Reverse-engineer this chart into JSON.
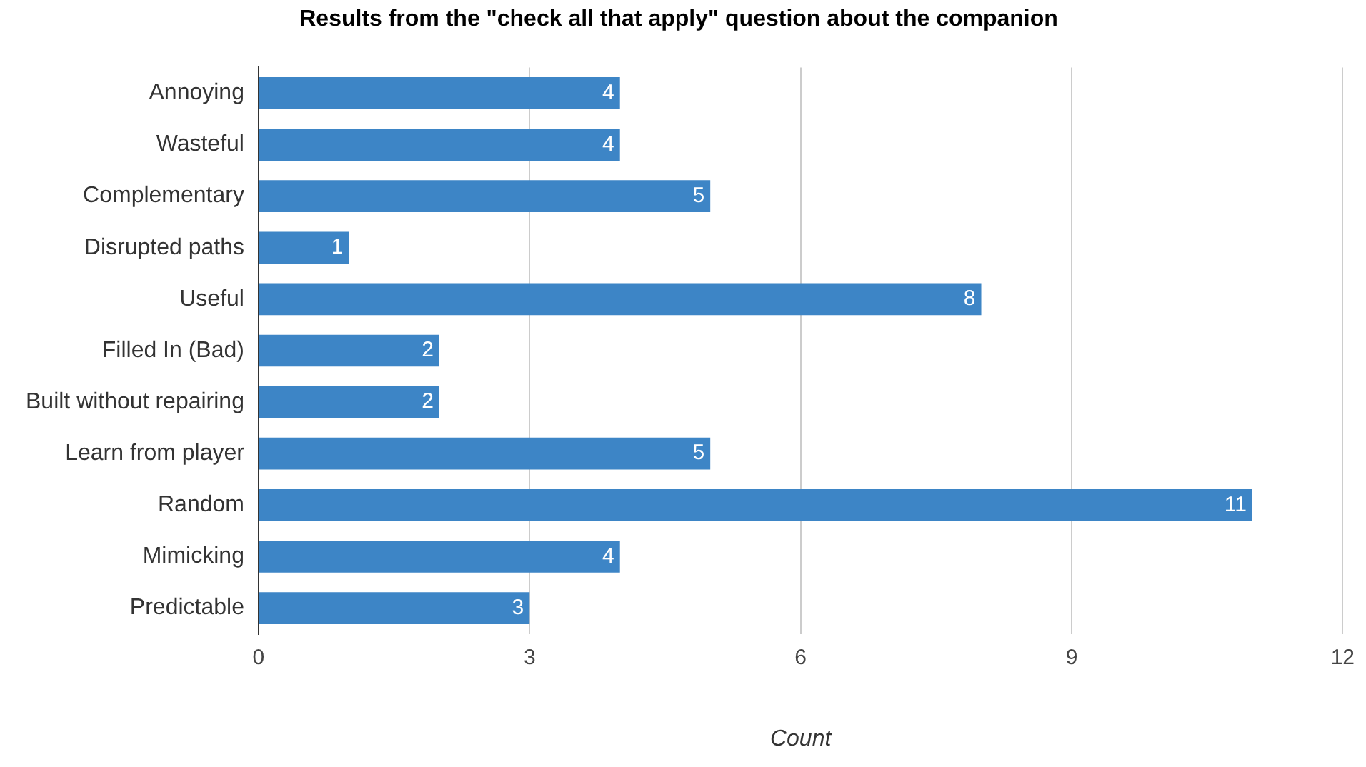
{
  "chart_data": {
    "type": "bar",
    "orientation": "horizontal",
    "title": "Results from the \"check all that apply\" question about the companion",
    "xlabel": "Count",
    "categories": [
      "Annoying",
      "Wasteful",
      "Complementary",
      "Disrupted paths",
      "Useful",
      "Filled In (Bad)",
      "Built without repairing",
      "Learn from player",
      "Random",
      "Mimicking",
      "Predictable"
    ],
    "values": [
      4,
      4,
      5,
      1,
      8,
      2,
      2,
      5,
      11,
      4,
      3
    ],
    "color": "#3d85c6",
    "xlim": [
      0,
      12
    ],
    "xticks": [
      0,
      3,
      6,
      9,
      12
    ],
    "grid": "x",
    "data_labels": true,
    "legend": false
  }
}
